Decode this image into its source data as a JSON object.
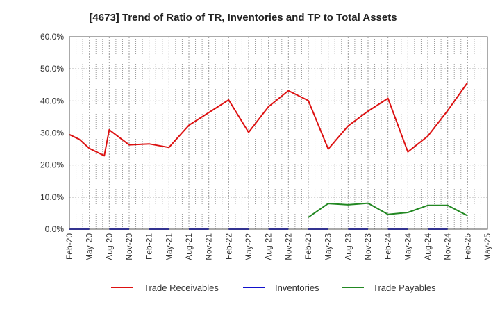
{
  "chart_data": {
    "type": "line",
    "title": "[4673]  Trend of Ratio of TR, Inventories and TP to Total Assets",
    "xlabel": "",
    "ylabel": "",
    "ylim": [
      0,
      0.6
    ],
    "y_ticks": [
      "0.0%",
      "10.0%",
      "20.0%",
      "30.0%",
      "40.0%",
      "50.0%",
      "60.0%"
    ],
    "x_tick_labels": [
      "Feb-20",
      "May-20",
      "Aug-20",
      "Nov-20",
      "Feb-21",
      "May-21",
      "Aug-21",
      "Nov-21",
      "Feb-22",
      "May-22",
      "Aug-22",
      "Nov-22",
      "Feb-23",
      "May-23",
      "Aug-23",
      "Nov-23",
      "Feb-24",
      "May-24",
      "Aug-24",
      "Nov-24",
      "Feb-25",
      "May-25"
    ],
    "grid": true,
    "legend_position": "bottom",
    "series": [
      {
        "name": "Trade Receivables",
        "color": "#dd1111",
        "values": [
          0.295,
          0.28,
          0.252,
          0.229,
          0.31,
          null,
          0.263,
          0.266,
          0.255,
          null,
          0.324,
          0.403,
          0.302,
          0.382,
          0.432,
          0.401,
          0.25,
          0.322,
          0.368,
          0.408,
          0.241,
          0.29,
          0.37,
          0.457
        ],
        "x_index": [
          0,
          0.5,
          1,
          1.75,
          2,
          2.5,
          3,
          4,
          5,
          5.5,
          6,
          8,
          9,
          10,
          11,
          12,
          13,
          14,
          15,
          16,
          17,
          18,
          19,
          20
        ]
      },
      {
        "name": "Inventories",
        "color": "#1111cc",
        "segments": [
          [
            0,
            1
          ],
          [
            2,
            3
          ],
          [
            4,
            5
          ],
          [
            6,
            7
          ],
          [
            8,
            9
          ],
          [
            10,
            11
          ],
          [
            12,
            13
          ],
          [
            14,
            15
          ],
          [
            16,
            17
          ],
          [
            18,
            19
          ]
        ],
        "value": 0.0
      },
      {
        "name": "Trade Payables",
        "color": "#228822",
        "x_index": [
          12,
          13,
          14,
          15,
          16,
          17,
          18,
          19,
          20
        ],
        "values": [
          0.037,
          0.08,
          0.076,
          0.081,
          0.046,
          0.052,
          0.074,
          0.074,
          0.042
        ]
      }
    ]
  }
}
